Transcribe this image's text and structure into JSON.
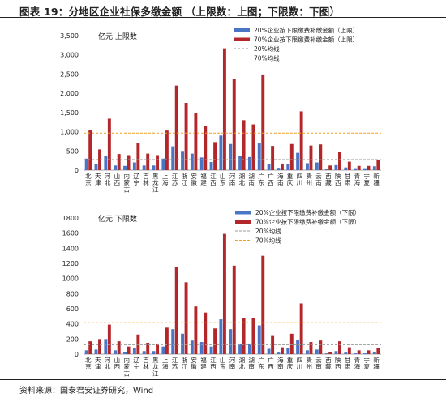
{
  "figure_title": "图表 19：分地区企业社保多缴金额 （上限数：上图；下限数：下图）",
  "source": "资料来源：国泰君安证券研究，Wind",
  "colors": {
    "s20": "#4a74c4",
    "s70": "#b3262a",
    "avg20": "#999999",
    "avg70": "#f0a020"
  },
  "chart_data": [
    {
      "type": "bar",
      "title": "",
      "unit_label": "亿元   上限数",
      "categories": [
        "北京",
        "天津",
        "河北",
        "山西",
        "内蒙古",
        "辽宁",
        "吉林",
        "黑龙江",
        "上海",
        "江苏",
        "浙江",
        "安徽",
        "福建",
        "江西",
        "山东",
        "河南",
        "湖北",
        "湖南",
        "广东",
        "广西",
        "海南",
        "重庆",
        "四川",
        "贵州",
        "云南",
        "西藏",
        "陕西",
        "甘肃",
        "青海",
        "宁夏",
        "新疆"
      ],
      "series": [
        {
          "name": "20%企业按下限缴费补缴金额（上限）",
          "values": [
            300,
            150,
            380,
            120,
            110,
            200,
            120,
            120,
            300,
            620,
            500,
            430,
            330,
            210,
            900,
            680,
            370,
            340,
            710,
            160,
            60,
            160,
            450,
            180,
            200,
            40,
            130,
            70,
            50,
            50,
            100
          ]
        },
        {
          "name": "70%企业按下限缴费补缴金额（上限）",
          "values": [
            1050,
            540,
            1340,
            420,
            390,
            700,
            430,
            390,
            1030,
            2200,
            1750,
            1480,
            1150,
            730,
            3170,
            2370,
            1300,
            1190,
            2490,
            630,
            170,
            680,
            1530,
            640,
            670,
            120,
            470,
            220,
            110,
            110,
            260
          ]
        }
      ],
      "averages": [
        {
          "name": "20%均线",
          "value": 275
        },
        {
          "name": "70%均线",
          "value": 965
        }
      ],
      "ylim": [
        0,
        3500
      ],
      "yticks": [
        "0",
        "500",
        "1,000",
        "1,500",
        "2,000",
        "2,500",
        "3,000",
        "3,500"
      ],
      "yticks_values": [
        0,
        500,
        1000,
        1500,
        2000,
        2500,
        3000,
        3500
      ],
      "legend": "top-right"
    },
    {
      "type": "bar",
      "title": "",
      "unit_label": "亿元   下限数",
      "categories": [
        "北京",
        "天津",
        "河北",
        "山西",
        "内蒙古",
        "辽宁",
        "吉林",
        "黑龙江",
        "上海",
        "江苏",
        "浙江",
        "安徽",
        "福建",
        "江西",
        "山东",
        "河南",
        "湖北",
        "湖南",
        "广东",
        "广西",
        "海南",
        "重庆",
        "四川",
        "贵州",
        "云南",
        "西藏",
        "陕西",
        "甘肃",
        "青海",
        "宁夏",
        "新疆"
      ],
      "series": [
        {
          "name": "20%企业按下限缴费补缴金额（下限）",
          "values": [
            50,
            60,
            200,
            50,
            30,
            80,
            40,
            40,
            100,
            330,
            270,
            180,
            160,
            100,
            460,
            330,
            140,
            140,
            380,
            70,
            20,
            80,
            190,
            50,
            60,
            10,
            40,
            20,
            10,
            10,
            30
          ]
        },
        {
          "name": "70%企业按下限缴费补缴金额（下限）",
          "values": [
            170,
            200,
            390,
            170,
            100,
            260,
            150,
            140,
            350,
            1150,
            950,
            630,
            550,
            340,
            1590,
            1170,
            480,
            480,
            1300,
            240,
            90,
            270,
            670,
            160,
            180,
            30,
            170,
            90,
            50,
            50,
            80
          ]
        }
      ],
      "averages": [
        {
          "name": "20%均线",
          "value": 125
        },
        {
          "name": "70%均线",
          "value": 420
        }
      ],
      "ylim": [
        0,
        1800
      ],
      "yticks": [
        "0",
        "200",
        "400",
        "600",
        "800",
        "1000",
        "1200",
        "1400",
        "1600",
        "1800"
      ],
      "yticks_values": [
        0,
        200,
        400,
        600,
        800,
        1000,
        1200,
        1400,
        1600,
        1800
      ],
      "legend": "top-right"
    }
  ]
}
